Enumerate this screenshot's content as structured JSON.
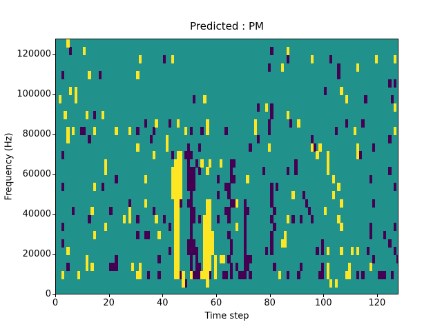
{
  "title": "Predicted : PM",
  "axes": {
    "xlabel": "Time step",
    "ylabel": "Frequency (Hz)"
  },
  "chart_data": {
    "type": "heatmap",
    "title": "Predicted : PM",
    "xlabel": "Time step",
    "ylabel": "Frequency (Hz)",
    "xlim": [
      0,
      128
    ],
    "ylim": [
      0,
      128000
    ],
    "x_ticks": [
      0,
      20,
      40,
      60,
      80,
      100,
      120
    ],
    "y_ticks": [
      0,
      20000,
      40000,
      60000,
      80000,
      100000,
      120000
    ],
    "grid_cols": 128,
    "grid_rows": 32,
    "row_height_hz": 4000,
    "grid": "off",
    "legend": "none",
    "colors": {
      "mid": "#21918c",
      "low": "#440154",
      "high": "#fde725"
    },
    "value_meaning": {
      "mid": "background/neutral",
      "low": "dark (min) cells",
      "high": "yellow (max) cells"
    },
    "cells_low": [
      [
        5,
        30
      ],
      [
        2,
        27
      ],
      [
        16,
        27
      ],
      [
        14,
        22
      ],
      [
        9,
        20
      ],
      [
        10,
        20
      ],
      [
        12,
        19
      ],
      [
        30,
        20
      ],
      [
        2,
        17
      ],
      [
        40,
        29
      ],
      [
        51,
        24
      ],
      [
        33,
        21
      ],
      [
        42,
        21
      ],
      [
        35,
        19
      ],
      [
        36,
        20
      ],
      [
        50,
        20
      ],
      [
        54,
        20
      ],
      [
        63,
        20
      ],
      [
        53,
        18
      ],
      [
        43,
        17
      ],
      [
        52,
        16
      ],
      [
        49,
        18
      ],
      [
        48,
        17
      ],
      [
        49,
        17
      ],
      [
        50,
        17
      ],
      [
        49,
        16
      ],
      [
        80,
        30
      ],
      [
        86,
        29
      ],
      [
        79,
        28
      ],
      [
        75,
        23
      ],
      [
        80,
        23
      ],
      [
        80,
        22
      ],
      [
        87,
        21
      ],
      [
        79,
        21
      ],
      [
        79,
        20
      ],
      [
        75,
        19
      ],
      [
        95,
        19
      ],
      [
        96,
        18
      ],
      [
        72,
        18
      ],
      [
        65,
        16
      ],
      [
        66,
        16
      ],
      [
        89,
        16
      ],
      [
        102,
        29
      ],
      [
        105,
        28
      ],
      [
        105,
        27
      ],
      [
        124,
        26
      ],
      [
        126,
        26
      ],
      [
        100,
        25
      ],
      [
        115,
        24
      ],
      [
        125,
        24
      ],
      [
        108,
        21
      ],
      [
        114,
        21
      ],
      [
        104,
        20
      ],
      [
        124,
        19
      ],
      [
        113,
        17
      ],
      [
        118,
        18
      ],
      [
        22,
        14
      ],
      [
        2,
        13
      ],
      [
        17,
        13
      ],
      [
        27,
        11
      ],
      [
        6,
        10
      ],
      [
        20,
        10
      ],
      [
        12,
        9
      ],
      [
        30,
        9
      ],
      [
        2,
        8
      ],
      [
        30,
        7
      ],
      [
        2,
        6
      ],
      [
        22,
        4
      ],
      [
        22,
        3
      ],
      [
        20,
        3
      ],
      [
        21,
        3
      ],
      [
        4,
        3
      ],
      [
        34,
        2
      ],
      [
        38,
        2
      ],
      [
        53,
        15
      ],
      [
        36,
        10
      ],
      [
        40,
        9
      ],
      [
        42,
        8
      ],
      [
        33,
        7
      ],
      [
        34,
        7
      ],
      [
        42,
        5
      ],
      [
        38,
        4
      ],
      [
        60,
        14
      ],
      [
        63,
        13
      ],
      [
        60,
        12
      ],
      [
        60,
        9
      ],
      [
        63,
        10
      ],
      [
        53,
        9
      ],
      [
        46,
        11
      ],
      [
        49,
        5
      ],
      [
        49,
        6
      ],
      [
        49,
        11
      ],
      [
        49,
        13
      ],
      [
        49,
        14
      ],
      [
        49,
        15
      ],
      [
        50,
        3
      ],
      [
        50,
        4
      ],
      [
        50,
        5
      ],
      [
        50,
        6
      ],
      [
        50,
        7
      ],
      [
        50,
        8
      ],
      [
        50,
        9
      ],
      [
        50,
        10
      ],
      [
        50,
        11
      ],
      [
        50,
        12
      ],
      [
        50,
        13
      ],
      [
        50,
        14
      ],
      [
        50,
        15
      ],
      [
        51,
        5
      ],
      [
        51,
        6
      ],
      [
        51,
        9
      ],
      [
        51,
        10
      ],
      [
        51,
        13
      ],
      [
        51,
        14
      ],
      [
        51,
        15
      ],
      [
        46,
        2
      ],
      [
        48,
        1
      ],
      [
        51,
        2
      ],
      [
        52,
        2
      ],
      [
        53,
        2
      ],
      [
        57,
        2
      ],
      [
        62,
        2
      ],
      [
        63,
        2
      ],
      [
        52,
        3
      ],
      [
        53,
        3
      ],
      [
        52,
        4
      ],
      [
        52,
        5
      ],
      [
        65,
        15
      ],
      [
        77,
        15
      ],
      [
        86,
        15
      ],
      [
        89,
        15
      ],
      [
        65,
        14
      ],
      [
        66,
        14
      ],
      [
        64,
        13
      ],
      [
        64,
        12
      ],
      [
        82,
        13
      ],
      [
        92,
        12
      ],
      [
        93,
        11
      ],
      [
        94,
        10
      ],
      [
        65,
        11
      ],
      [
        66,
        11
      ],
      [
        70,
        11
      ],
      [
        70,
        10
      ],
      [
        70,
        9
      ],
      [
        71,
        10
      ],
      [
        64,
        10
      ],
      [
        64,
        9
      ],
      [
        64,
        7
      ],
      [
        70,
        8
      ],
      [
        70,
        7
      ],
      [
        70,
        6
      ],
      [
        70,
        5
      ],
      [
        70,
        4
      ],
      [
        70,
        3
      ],
      [
        70,
        2
      ],
      [
        71,
        4
      ],
      [
        71,
        3
      ],
      [
        65,
        6
      ],
      [
        65,
        5
      ],
      [
        64,
        4
      ],
      [
        67,
        3
      ],
      [
        68,
        2
      ],
      [
        69,
        2
      ],
      [
        72,
        4
      ],
      [
        72,
        2
      ],
      [
        80,
        13
      ],
      [
        80,
        12
      ],
      [
        80,
        11
      ],
      [
        81,
        10
      ],
      [
        80,
        9
      ],
      [
        81,
        8
      ],
      [
        80,
        7
      ],
      [
        88,
        9
      ],
      [
        91,
        9
      ],
      [
        95,
        9
      ],
      [
        80,
        6
      ],
      [
        80,
        5
      ],
      [
        78,
        5
      ],
      [
        81,
        3
      ],
      [
        86,
        2
      ],
      [
        90,
        2
      ],
      [
        91,
        3
      ],
      [
        65,
        3
      ],
      [
        65,
        2
      ],
      [
        124,
        15
      ],
      [
        117,
        14
      ],
      [
        126,
        13
      ],
      [
        118,
        11
      ],
      [
        117,
        8
      ],
      [
        117,
        7
      ],
      [
        122,
        7
      ],
      [
        126,
        8
      ],
      [
        124,
        6
      ],
      [
        126,
        5
      ],
      [
        99,
        6
      ],
      [
        97,
        5
      ],
      [
        99,
        5
      ],
      [
        116,
        5
      ],
      [
        118,
        4
      ],
      [
        127,
        4
      ],
      [
        99,
        3
      ],
      [
        99,
        2
      ],
      [
        98,
        2
      ],
      [
        112,
        2
      ],
      [
        114,
        2
      ],
      [
        120,
        2
      ],
      [
        121,
        2
      ],
      [
        122,
        2
      ],
      [
        125,
        2
      ]
    ],
    "cells_high": [
      [
        4,
        31
      ],
      [
        10,
        30
      ],
      [
        31,
        29
      ],
      [
        12,
        27
      ],
      [
        30,
        27
      ],
      [
        5,
        25
      ],
      [
        7,
        25
      ],
      [
        7,
        24
      ],
      [
        1,
        24
      ],
      [
        3,
        22
      ],
      [
        11,
        22
      ],
      [
        17,
        22
      ],
      [
        4,
        20
      ],
      [
        4,
        19
      ],
      [
        6,
        20
      ],
      [
        14,
        20
      ],
      [
        27,
        20
      ],
      [
        22,
        20
      ],
      [
        30,
        18
      ],
      [
        18,
        16
      ],
      [
        18,
        15
      ],
      [
        43,
        29
      ],
      [
        55,
        24
      ],
      [
        37,
        21
      ],
      [
        45,
        21
      ],
      [
        56,
        21
      ],
      [
        56,
        20
      ],
      [
        48,
        20
      ],
      [
        41,
        19
      ],
      [
        41,
        18
      ],
      [
        36,
        17
      ],
      [
        54,
        16
      ],
      [
        57,
        16
      ],
      [
        61,
        16
      ],
      [
        45,
        17
      ],
      [
        46,
        17
      ],
      [
        45,
        16
      ],
      [
        46,
        16
      ],
      [
        86,
        30
      ],
      [
        95,
        29
      ],
      [
        84,
        28
      ],
      [
        78,
        23
      ],
      [
        86,
        22
      ],
      [
        90,
        21
      ],
      [
        74,
        21
      ],
      [
        74,
        20
      ],
      [
        79,
        18
      ],
      [
        95,
        18
      ],
      [
        119,
        29
      ],
      [
        126,
        29
      ],
      [
        112,
        28
      ],
      [
        106,
        25
      ],
      [
        108,
        24
      ],
      [
        126,
        23
      ],
      [
        111,
        20
      ],
      [
        126,
        20
      ],
      [
        98,
        18
      ],
      [
        112,
        18
      ],
      [
        112,
        17
      ],
      [
        97,
        17
      ],
      [
        101,
        17
      ],
      [
        101,
        16
      ],
      [
        14,
        13
      ],
      [
        13,
        10
      ],
      [
        27,
        10
      ],
      [
        27,
        9
      ],
      [
        25,
        9
      ],
      [
        18,
        8
      ],
      [
        14,
        7
      ],
      [
        4,
        5
      ],
      [
        11,
        4
      ],
      [
        11,
        3
      ],
      [
        13,
        3
      ],
      [
        28,
        3
      ],
      [
        31,
        3
      ],
      [
        31,
        2
      ],
      [
        30,
        2
      ],
      [
        2,
        2
      ],
      [
        8,
        2
      ],
      [
        33,
        14
      ],
      [
        33,
        11
      ],
      [
        37,
        9
      ],
      [
        38,
        7
      ],
      [
        59,
        4
      ],
      [
        61,
        4
      ],
      [
        62,
        4
      ],
      [
        59,
        3
      ],
      [
        59,
        2
      ],
      [
        56,
        15
      ],
      [
        43,
        12
      ],
      [
        43,
        13
      ],
      [
        43,
        14
      ],
      [
        43,
        15
      ],
      [
        44,
        2
      ],
      [
        44,
        3
      ],
      [
        44,
        4
      ],
      [
        44,
        5
      ],
      [
        44,
        6
      ],
      [
        44,
        7
      ],
      [
        44,
        8
      ],
      [
        44,
        9
      ],
      [
        44,
        10
      ],
      [
        44,
        11
      ],
      [
        44,
        12
      ],
      [
        44,
        13
      ],
      [
        44,
        14
      ],
      [
        44,
        15
      ],
      [
        44,
        16
      ],
      [
        45,
        2
      ],
      [
        45,
        3
      ],
      [
        45,
        4
      ],
      [
        45,
        5
      ],
      [
        45,
        6
      ],
      [
        45,
        7
      ],
      [
        45,
        8
      ],
      [
        45,
        9
      ],
      [
        45,
        10
      ],
      [
        45,
        11
      ],
      [
        45,
        12
      ],
      [
        45,
        13
      ],
      [
        45,
        14
      ],
      [
        45,
        15
      ],
      [
        46,
        12
      ],
      [
        46,
        13
      ],
      [
        46,
        14
      ],
      [
        46,
        15
      ],
      [
        56,
        1
      ],
      [
        56,
        2
      ],
      [
        56,
        3
      ],
      [
        56,
        4
      ],
      [
        56,
        5
      ],
      [
        56,
        6
      ],
      [
        56,
        7
      ],
      [
        56,
        8
      ],
      [
        56,
        9
      ],
      [
        56,
        10
      ],
      [
        56,
        11
      ],
      [
        57,
        3
      ],
      [
        57,
        4
      ],
      [
        57,
        5
      ],
      [
        57,
        6
      ],
      [
        57,
        7
      ],
      [
        57,
        8
      ],
      [
        57,
        9
      ],
      [
        57,
        10
      ],
      [
        57,
        11
      ],
      [
        55,
        3
      ],
      [
        55,
        4
      ],
      [
        55,
        5
      ],
      [
        55,
        6
      ],
      [
        55,
        7
      ],
      [
        55,
        8
      ],
      [
        55,
        9
      ],
      [
        58,
        5
      ],
      [
        58,
        6
      ],
      [
        58,
        7
      ],
      [
        47,
        2
      ],
      [
        47,
        1
      ],
      [
        50,
        2
      ],
      [
        54,
        2
      ],
      [
        55,
        2
      ],
      [
        71,
        14
      ],
      [
        88,
        12
      ],
      [
        67,
        11
      ],
      [
        67,
        8
      ],
      [
        86,
        9
      ],
      [
        85,
        7
      ],
      [
        84,
        6
      ],
      [
        85,
        6
      ],
      [
        83,
        2
      ],
      [
        101,
        15
      ],
      [
        103,
        14
      ],
      [
        105,
        13
      ],
      [
        103,
        12
      ],
      [
        106,
        11
      ],
      [
        100,
        10
      ],
      [
        105,
        9
      ],
      [
        106,
        8
      ],
      [
        101,
        5
      ],
      [
        106,
        5
      ],
      [
        110,
        5
      ],
      [
        112,
        5
      ],
      [
        101,
        3
      ],
      [
        101,
        2
      ],
      [
        102,
        1
      ],
      [
        104,
        1
      ],
      [
        108,
        2
      ],
      [
        109,
        3
      ],
      [
        109,
        2
      ],
      [
        117,
        3
      ]
    ]
  }
}
